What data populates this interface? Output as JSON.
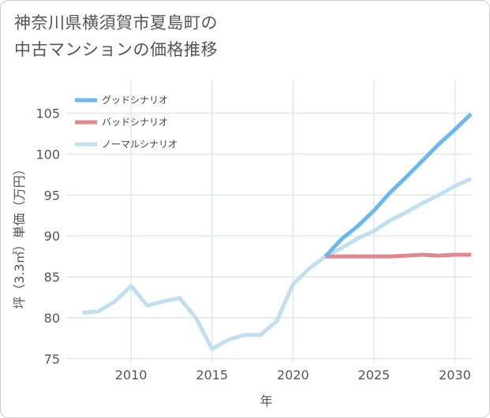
{
  "title": {
    "line1": "神奈川県横須賀市夏島町の",
    "line2": "中古マンションの価格推移"
  },
  "chart_data": {
    "type": "line",
    "title": "神奈川県横須賀市夏島町の中古マンションの価格推移",
    "xlabel": "年",
    "ylabel": "坪（3.3㎡）単価（万円）",
    "xlim": [
      2006,
      2031
    ],
    "ylim": [
      74.5,
      109
    ],
    "xticks": [
      2010,
      2015,
      2020,
      2025,
      2030
    ],
    "yticks": [
      75,
      80,
      85,
      90,
      95,
      100,
      105
    ],
    "grid": true,
    "legend_position": "top-left",
    "series": [
      {
        "name": "グッドシナリオ",
        "color": "#6ab9ee",
        "width": 5,
        "x": [
          2022,
          2023,
          2024,
          2025,
          2026,
          2027,
          2028,
          2029,
          2030,
          2031
        ],
        "y": [
          87.5,
          89.6,
          91.2,
          93.1,
          95.3,
          97.2,
          99.2,
          101.2,
          103.0,
          104.9
        ]
      },
      {
        "name": "バッドシナリオ",
        "color": "#e0888e",
        "width": 5,
        "x": [
          2022,
          2023,
          2024,
          2025,
          2026,
          2027,
          2028,
          2029,
          2030,
          2031
        ],
        "y": [
          87.5,
          87.5,
          87.5,
          87.5,
          87.5,
          87.6,
          87.7,
          87.6,
          87.7,
          87.7
        ]
      },
      {
        "name": "ノーマルシナリオ",
        "color": "#c2dff0",
        "width": 5,
        "x": [
          2007,
          2008,
          2009,
          2010,
          2011,
          2012,
          2013,
          2014,
          2015,
          2016,
          2017,
          2018,
          2019,
          2020,
          2021,
          2022,
          2023,
          2024,
          2025,
          2026,
          2027,
          2028,
          2029,
          2030,
          2031
        ],
        "y": [
          80.6,
          80.8,
          82.0,
          83.9,
          81.5,
          82.0,
          82.4,
          80.0,
          76.2,
          77.3,
          77.9,
          77.9,
          79.6,
          84.1,
          86.0,
          87.5,
          88.5,
          89.7,
          90.6,
          91.9,
          92.9,
          94.0,
          95.0,
          96.1,
          97.0
        ]
      }
    ]
  }
}
